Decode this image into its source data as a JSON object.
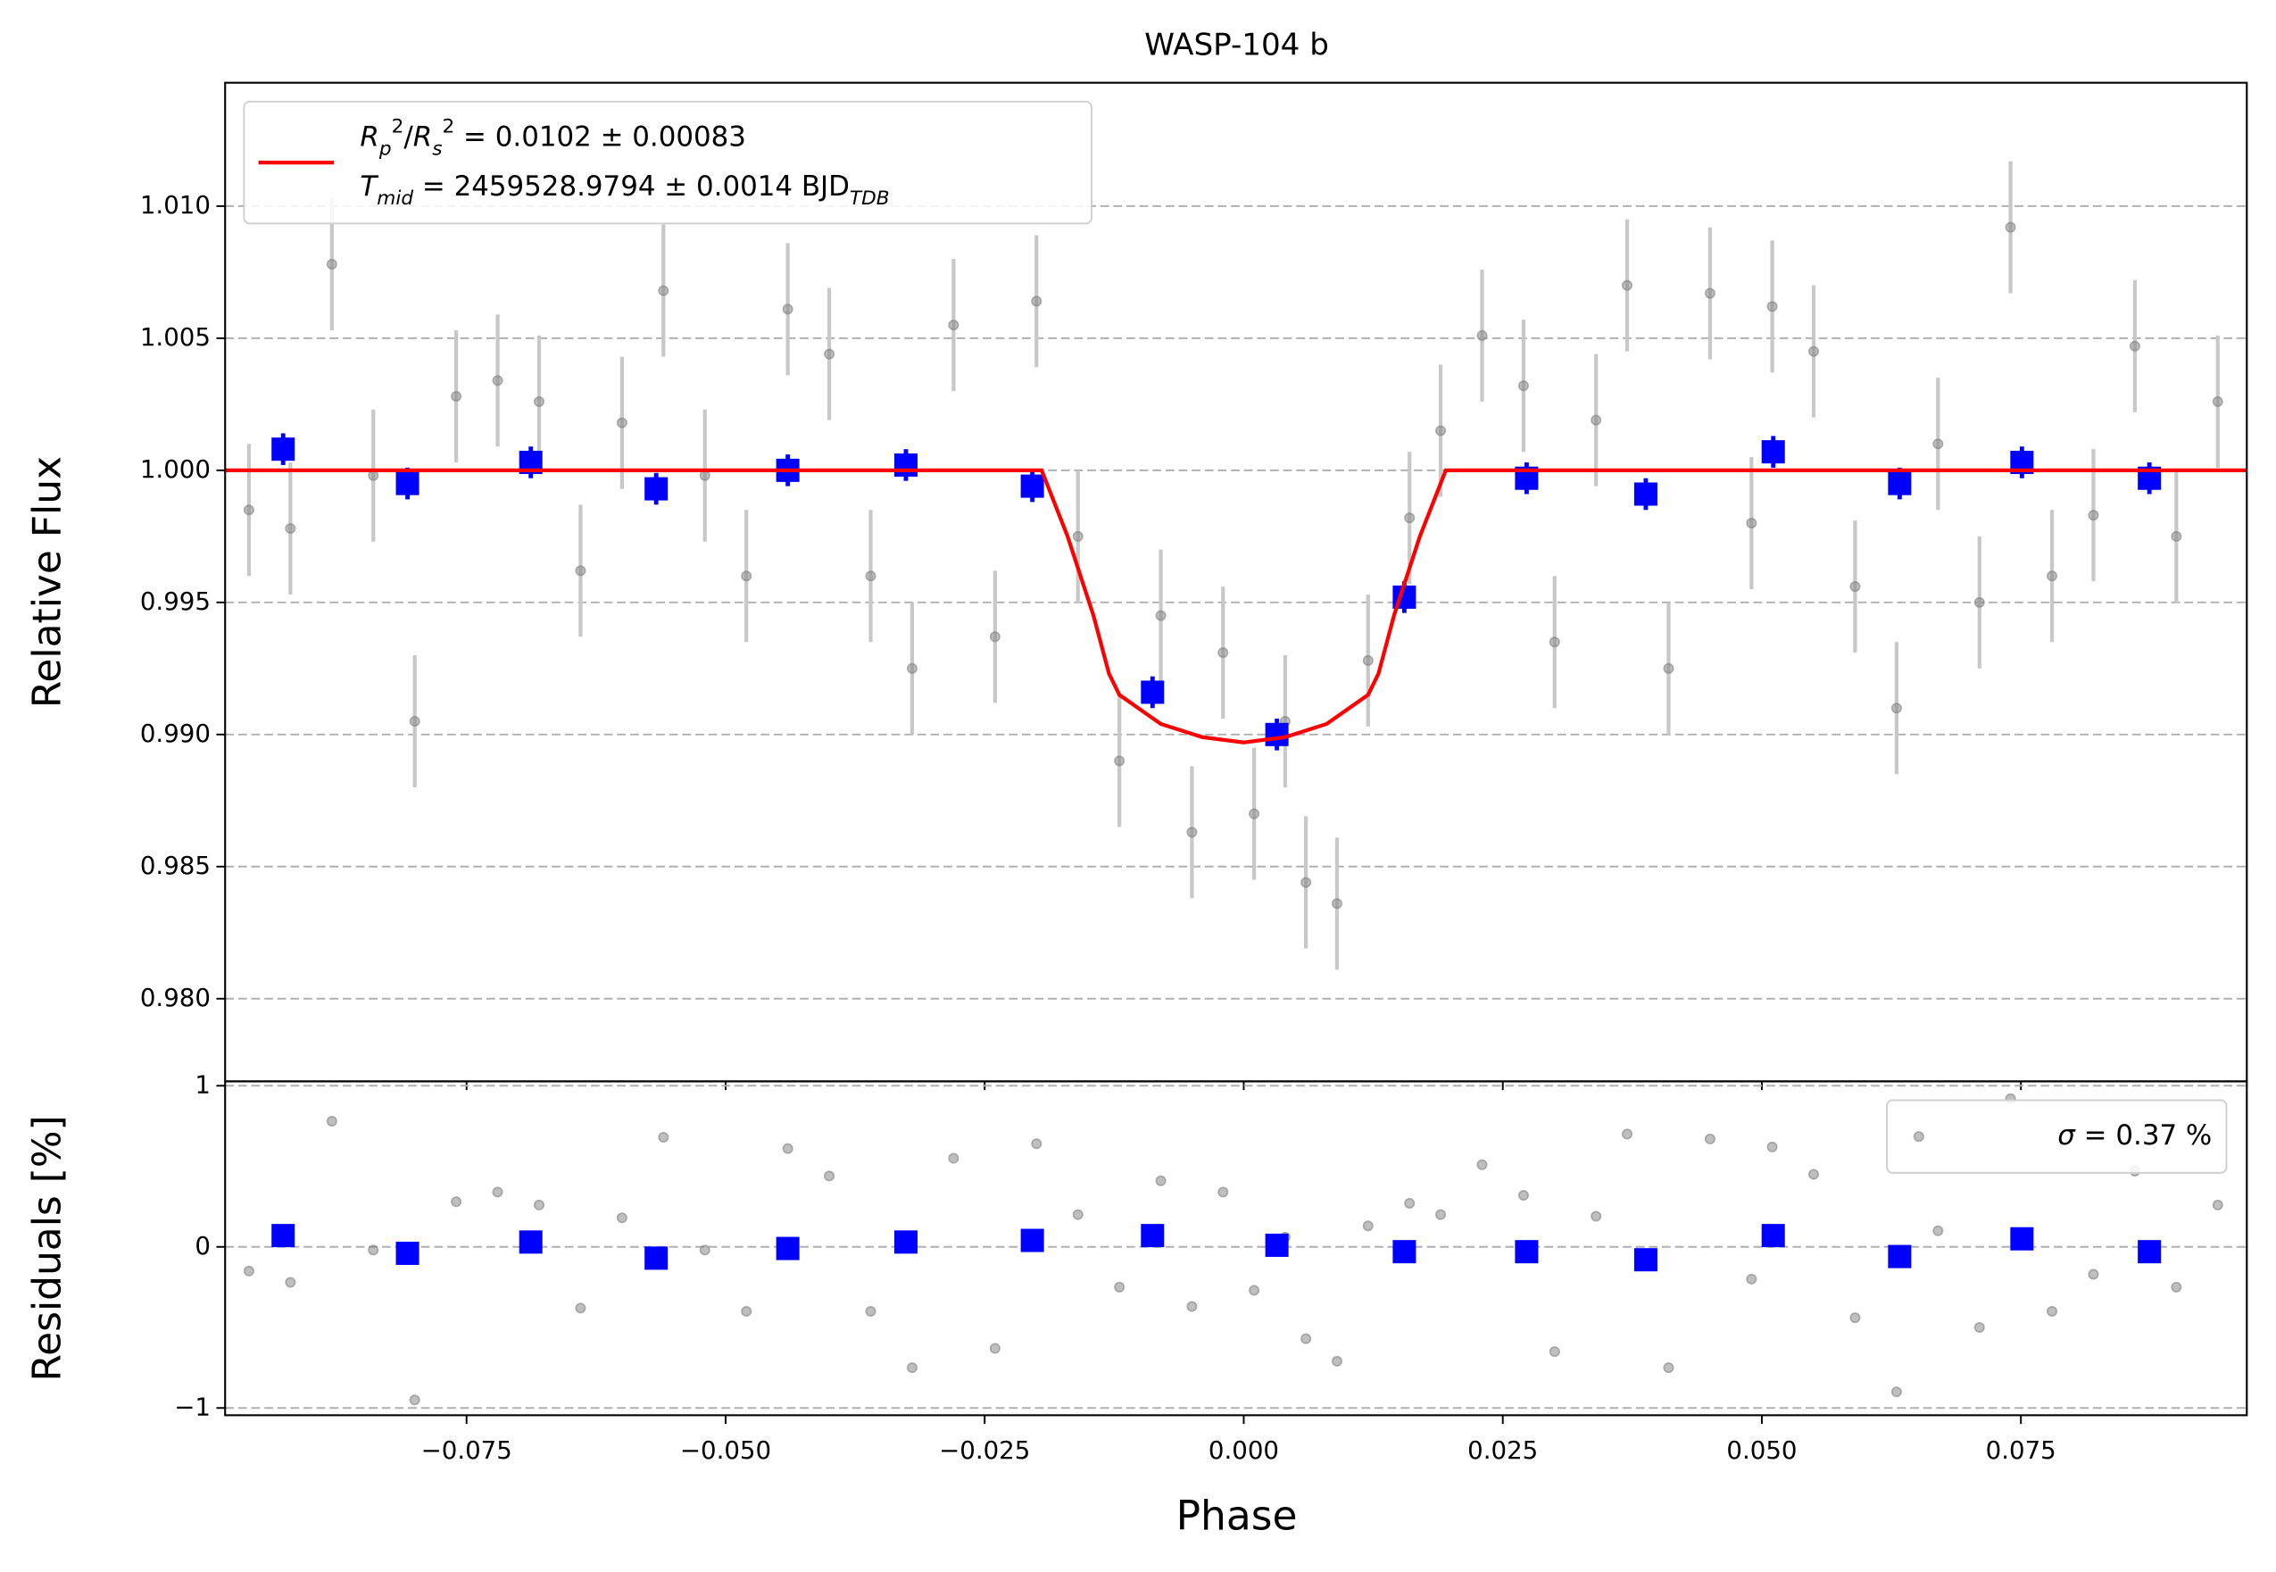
{
  "chart_data": [
    {
      "type": "scatter",
      "title": "WASP-104 b",
      "ylabel": "Relative Flux",
      "xlim": [
        -0.0983,
        0.0968
      ],
      "ylim": [
        0.97687,
        1.01467
      ],
      "xticks": [
        -0.075,
        -0.05,
        -0.025,
        0,
        0.025,
        0.05,
        0.075
      ],
      "yticks": [
        {
          "value": 0.98,
          "label": "0.980"
        },
        {
          "value": 0.985,
          "label": "0.985"
        },
        {
          "value": 0.99,
          "label": "0.990"
        },
        {
          "value": 0.995,
          "label": "0.995"
        },
        {
          "value": 1,
          "label": "1.000"
        },
        {
          "value": 1.005,
          "label": "1.005"
        },
        {
          "value": 1.01,
          "label": "1.010"
        }
      ],
      "grid": true,
      "legend": "upper left",
      "series": [
        {
          "color": "#808080",
          "errcolor": "#c8c8c8",
          "marker": "o",
          "yerr": 0.0025,
          "x": [
            -0.096,
            -0.092,
            -0.088,
            -0.084,
            -0.08,
            -0.076,
            -0.072,
            -0.068,
            -0.064,
            -0.06,
            -0.056,
            -0.052,
            -0.048,
            -0.044,
            -0.04,
            -0.036,
            -0.032,
            -0.028,
            -0.024,
            -0.02,
            -0.016,
            -0.012,
            -0.008,
            -0.005,
            -0.002,
            0.001,
            0.004,
            0.006,
            0.009,
            0.012,
            0.016,
            0.019,
            0.023,
            0.027,
            0.03,
            0.034,
            0.037,
            0.041,
            0.045,
            0.049,
            0.051,
            0.055,
            0.059,
            0.063,
            0.067,
            0.071,
            0.074,
            0.078,
            0.082,
            0.086,
            0.09,
            0.094
          ],
          "values": [
            0.9985,
            0.9978,
            1.0078,
            0.9998,
            0.9905,
            1.0028,
            1.0034,
            1.0026,
            0.9962,
            1.0018,
            1.0068,
            0.9998,
            0.996,
            1.0061,
            1.0044,
            0.996,
            0.9925,
            1.0055,
            0.9937,
            1.0064,
            0.9975,
            0.989,
            0.9945,
            0.9863,
            0.9931,
            0.987,
            0.9905,
            0.9844,
            0.9836,
            0.9928,
            0.9982,
            1.0015,
            1.0051,
            1.0032,
            0.9935,
            1.0019,
            1.007,
            0.9925,
            1.0067,
            0.998,
            1.0062,
            1.0045,
            0.9956,
            0.991,
            1.001,
            0.995,
            1.0092,
            0.996,
            0.9983,
            1.0047,
            0.9975,
            1.0026
          ]
        },
        {
          "color": "#0000ff",
          "marker": "s",
          "yerr": 0.0006,
          "x": [
            -0.0927,
            -0.0807,
            -0.0688,
            -0.0567,
            -0.044,
            -0.0326,
            -0.0204,
            -0.0088,
            0.0032,
            0.0155,
            0.0273,
            0.0388,
            0.0511,
            0.0633,
            0.0751,
            0.0874
          ],
          "values": [
            1.0008,
            0.9995,
            1.0003,
            0.9993,
            1.0,
            1.0002,
            0.9994,
            0.9916,
            0.99,
            0.9952,
            0.9997,
            0.9991,
            1.0007,
            0.9995,
            1.0003,
            0.9997
          ]
        },
        {
          "type": "line",
          "color": "#ff0000",
          "name": [
            {
              "t": "R",
              "i": true
            },
            {
              "t": "p",
              "i": true,
              "s": "sub"
            },
            {
              "t": "2",
              "s": "super"
            },
            {
              "t": "/"
            },
            {
              "t": "R",
              "i": true
            },
            {
              "t": "s",
              "i": true,
              "s": "sub"
            },
            {
              "t": "2",
              "s": "super"
            },
            {
              "t": " = 0.0102 ± 0.00083"
            }
          ],
          "annotation": [
            {
              "t": "T",
              "i": true
            },
            {
              "t": "mid",
              "i": true,
              "s": "sub"
            },
            {
              "t": " = 2459528.9794 ± 0.0014 BJD"
            },
            {
              "t": "TDB",
              "i": true,
              "s": "sub"
            }
          ],
          "x": [
            -0.0983,
            -0.0195,
            -0.017,
            -0.0145,
            -0.013,
            -0.012,
            -0.008,
            -0.004,
            0,
            0.004,
            0.008,
            0.012,
            0.013,
            0.0145,
            0.017,
            0.0195,
            0.0968
          ],
          "values": [
            1,
            1,
            0.9975,
            0.9945,
            0.9923,
            0.9915,
            0.9904,
            0.9899,
            0.9897,
            0.9899,
            0.9904,
            0.9915,
            0.9923,
            0.9945,
            0.9975,
            1,
            1
          ]
        }
      ]
    },
    {
      "type": "scatter",
      "ylabel": "Residuals [%]",
      "xlabel": "Phase",
      "xlim": [
        -0.0983,
        0.0968
      ],
      "ylim": [
        -1.045,
        1.027
      ],
      "xticks": [
        {
          "value": -0.075,
          "label": "−0.075"
        },
        {
          "value": -0.05,
          "label": "−0.050"
        },
        {
          "value": -0.025,
          "label": "−0.025"
        },
        {
          "value": 0,
          "label": "0.000"
        },
        {
          "value": 0.025,
          "label": "0.025"
        },
        {
          "value": 0.05,
          "label": "0.050"
        },
        {
          "value": 0.075,
          "label": "0.075"
        }
      ],
      "yticks": [
        {
          "value": -1,
          "label": "−1"
        },
        0,
        1
      ],
      "grid": true,
      "legend": "upper right",
      "series": [
        {
          "color": "#808080",
          "marker": "o",
          "name": [
            {
              "t": "σ",
              "i": true
            },
            {
              "t": " = 0.37 %"
            }
          ],
          "x": [
            -0.096,
            -0.092,
            -0.088,
            -0.084,
            -0.08,
            -0.076,
            -0.072,
            -0.068,
            -0.064,
            -0.06,
            -0.056,
            -0.052,
            -0.048,
            -0.044,
            -0.04,
            -0.036,
            -0.032,
            -0.028,
            -0.024,
            -0.02,
            -0.016,
            -0.012,
            -0.008,
            -0.005,
            -0.002,
            0.001,
            0.004,
            0.006,
            0.009,
            0.012,
            0.016,
            0.019,
            0.023,
            0.027,
            0.03,
            0.034,
            0.037,
            0.041,
            0.045,
            0.049,
            0.051,
            0.055,
            0.059,
            0.063,
            0.067,
            0.071,
            0.074,
            0.078,
            0.082,
            0.086,
            0.09,
            0.094
          ],
          "values": [
            -0.15,
            -0.22,
            0.78,
            -0.02,
            -0.95,
            0.28,
            0.34,
            0.26,
            -0.38,
            0.18,
            0.68,
            -0.02,
            -0.4,
            0.61,
            0.44,
            -0.4,
            -0.75,
            0.55,
            -0.63,
            0.64,
            0.2,
            -0.25,
            0.41,
            -0.37,
            0.34,
            -0.27,
            0.06,
            -0.57,
            -0.71,
            0.13,
            0.27,
            0.2,
            0.51,
            0.32,
            -0.65,
            0.19,
            0.7,
            -0.75,
            0.67,
            -0.2,
            0.62,
            0.45,
            -0.44,
            -0.9,
            0.1,
            -0.5,
            0.92,
            -0.4,
            -0.17,
            0.47,
            -0.25,
            0.26
          ]
        },
        {
          "color": "#0000ff",
          "marker": "s",
          "x": [
            -0.0927,
            -0.0807,
            -0.0688,
            -0.0567,
            -0.044,
            -0.0326,
            -0.0204,
            -0.0088,
            0.0032,
            0.0155,
            0.0273,
            0.0388,
            0.0511,
            0.0633,
            0.0751,
            0.0874
          ],
          "values": [
            0.07,
            -0.04,
            0.03,
            -0.07,
            -0.01,
            0.03,
            0.04,
            0.07,
            0.01,
            -0.03,
            -0.03,
            -0.08,
            0.07,
            -0.06,
            0.05,
            -0.03
          ]
        }
      ]
    }
  ]
}
